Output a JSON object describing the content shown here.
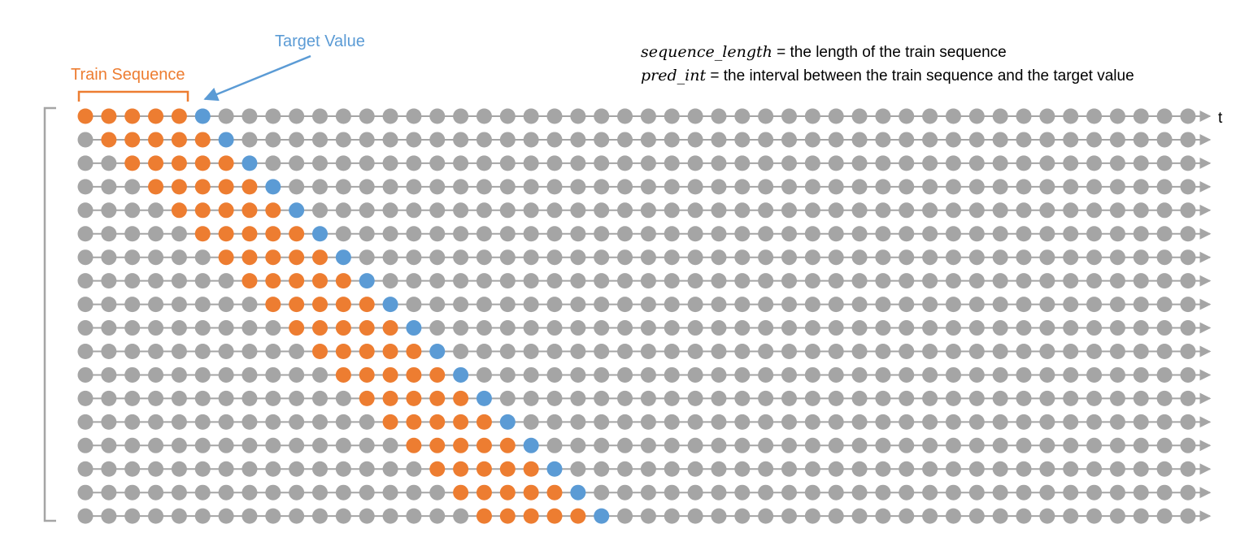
{
  "labels": {
    "train_sequence": "Train Sequence",
    "target_value": "Target Value",
    "axis": "t"
  },
  "definitions": [
    {
      "var": "sequence_length",
      "text": " = the length of the train sequence"
    },
    {
      "var": "pred_int",
      "text": " = the interval between the train sequence and the target value"
    }
  ],
  "diagram": {
    "rows": 18,
    "points_per_row": 48,
    "sequence_length": 5,
    "target_offset": 5,
    "colors": {
      "train": "#ED7D31",
      "target": "#5B9BD5",
      "inactive": "#A5A5A5",
      "line": "#A5A5A5",
      "bracket": "#A5A5A5"
    }
  }
}
